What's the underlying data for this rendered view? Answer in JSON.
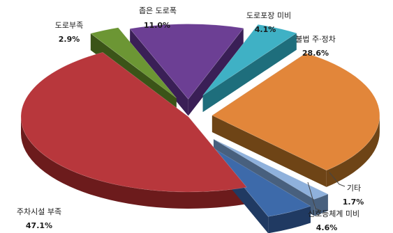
{
  "chart_data": {
    "type": "pie",
    "style": "3d-exploded",
    "categories": [
      "불법 주·정차",
      "기타",
      "신호등체계 미비",
      "주차시설 부족",
      "도로부족",
      "좁은 도로폭",
      "도로포장 미비"
    ],
    "values": [
      28.6,
      1.7,
      4.6,
      47.1,
      2.9,
      11.0,
      4.1
    ],
    "value_labels": [
      "28.6%",
      "1.7%",
      "4.6%",
      "47.1%",
      "2.9%",
      "11.0%",
      "4.1%"
    ],
    "colors": [
      "#e2863a",
      "#8fb1dc",
      "#3d6aaa",
      "#b8373c",
      "#6c9634",
      "#6c3f94",
      "#3fb1c5"
    ],
    "side_colors": [
      "#6e4416",
      "#48607e",
      "#203a62",
      "#6c1b1c",
      "#3b5418",
      "#3a1f56",
      "#1e6e7c"
    ],
    "legend": "none",
    "grid": false
  }
}
